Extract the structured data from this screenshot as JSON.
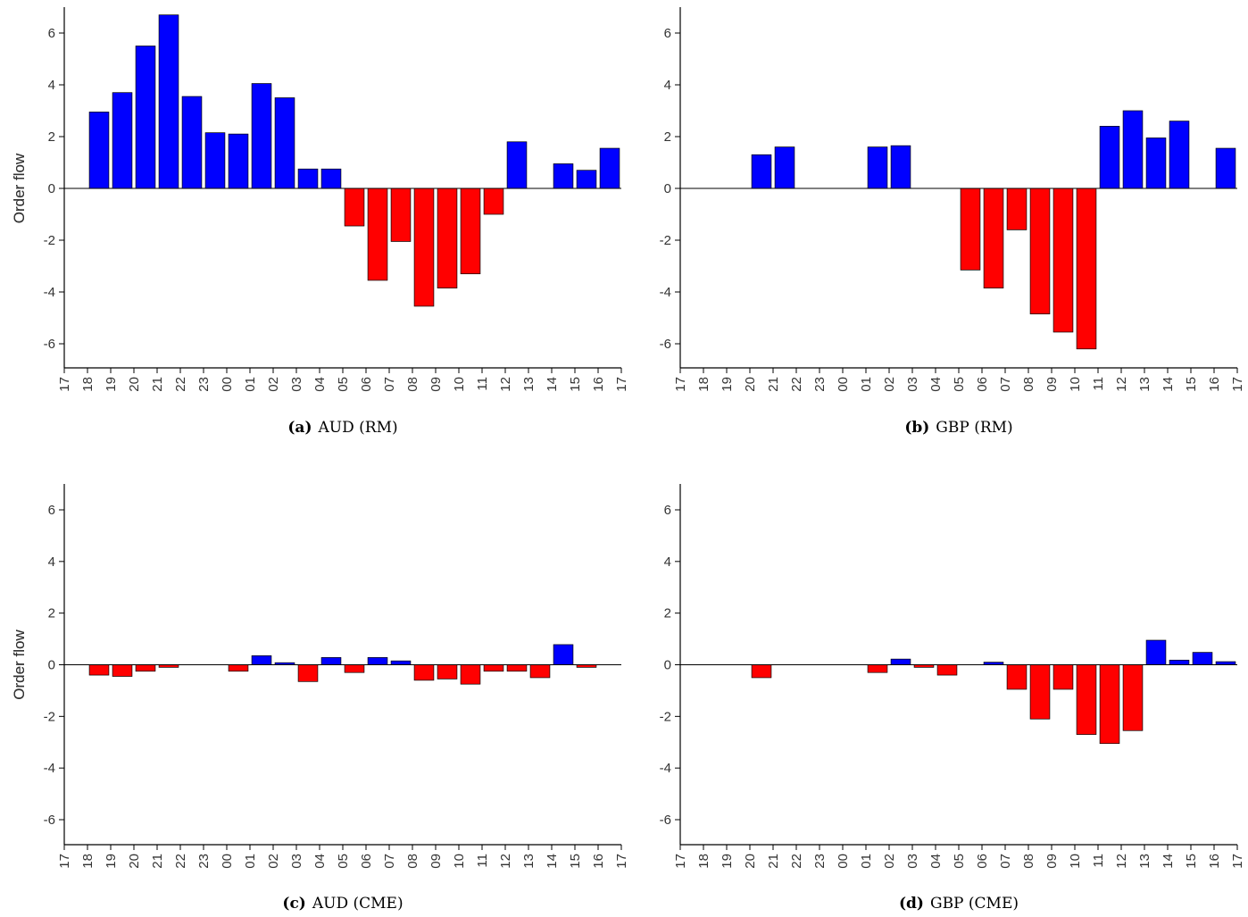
{
  "colors": {
    "positive": "#0000ff",
    "negative": "#ff0000",
    "axis": "#000000",
    "tick_text": "#333333"
  },
  "chart_data": [
    {
      "type": "bar",
      "caption_letter": "(a)",
      "caption_name": "AUD (RM)",
      "ylabel": "Order flow",
      "ylim": [
        -7,
        7
      ],
      "yticks": [
        6,
        4,
        2,
        0,
        -2,
        -4,
        -6
      ],
      "ytick_labels": [
        "6",
        "4",
        "2",
        "0",
        "-2",
        "-4",
        "-6"
      ],
      "xtick_labels": [
        "17",
        "18",
        "19",
        "20",
        "21",
        "22",
        "23",
        "00",
        "01",
        "02",
        "03",
        "04",
        "05",
        "06",
        "07",
        "08",
        "09",
        "10",
        "11",
        "12",
        "13",
        "14",
        "15",
        "16",
        "17"
      ],
      "grid": false,
      "values": [
        0,
        2.95,
        3.7,
        5.5,
        6.7,
        3.55,
        2.15,
        2.1,
        4.05,
        3.5,
        0.75,
        0.75,
        -1.45,
        -3.55,
        -2.05,
        -4.55,
        -3.85,
        -3.3,
        -1.0,
        1.8,
        0,
        0.95,
        0.7,
        1.55
      ]
    },
    {
      "type": "bar",
      "caption_letter": "(b)",
      "caption_name": "GBP (RM)",
      "ylabel": "Order flow",
      "ylim": [
        -7,
        7
      ],
      "yticks": [
        6,
        4,
        2,
        0,
        -2,
        -4,
        -6
      ],
      "ytick_labels": [
        "6",
        "4",
        "2",
        "0",
        "-2",
        "-4",
        "-6"
      ],
      "xtick_labels": [
        "17",
        "18",
        "19",
        "20",
        "21",
        "22",
        "23",
        "00",
        "01",
        "02",
        "03",
        "04",
        "05",
        "06",
        "07",
        "08",
        "09",
        "10",
        "11",
        "12",
        "13",
        "14",
        "15",
        "16",
        "17"
      ],
      "grid": false,
      "values": [
        0,
        0,
        0,
        1.3,
        1.6,
        0,
        0,
        0,
        1.6,
        1.65,
        0,
        0,
        -3.15,
        -3.85,
        -1.6,
        -4.85,
        -5.55,
        -6.2,
        2.4,
        3.0,
        1.95,
        2.6,
        0,
        1.55
      ]
    },
    {
      "type": "bar",
      "caption_letter": "(c)",
      "caption_name": "AUD (CME)",
      "ylabel": "Order flow",
      "ylim": [
        -7,
        7
      ],
      "yticks": [
        6,
        4,
        2,
        0,
        -2,
        -4,
        -6
      ],
      "ytick_labels": [
        "6",
        "4",
        "2",
        "0",
        "-2",
        "-4",
        "-6"
      ],
      "xtick_labels": [
        "17",
        "18",
        "19",
        "20",
        "21",
        "22",
        "23",
        "00",
        "01",
        "02",
        "03",
        "04",
        "05",
        "06",
        "07",
        "08",
        "09",
        "10",
        "11",
        "12",
        "13",
        "14",
        "15",
        "16",
        "17"
      ],
      "grid": false,
      "values": [
        0,
        -0.4,
        -0.45,
        -0.25,
        -0.1,
        0,
        0,
        -0.25,
        0.35,
        0.08,
        -0.65,
        0.28,
        -0.3,
        0.28,
        0.15,
        -0.6,
        -0.55,
        -0.75,
        -0.25,
        -0.25,
        -0.5,
        0.78,
        -0.1,
        0
      ]
    },
    {
      "type": "bar",
      "caption_letter": "(d)",
      "caption_name": "GBP (CME)",
      "ylabel": "Order flow",
      "ylim": [
        -7,
        7
      ],
      "yticks": [
        6,
        4,
        2,
        0,
        -2,
        -4,
        -6
      ],
      "ytick_labels": [
        "6",
        "4",
        "2",
        "0",
        "-2",
        "-4",
        "-6"
      ],
      "xtick_labels": [
        "17",
        "18",
        "19",
        "20",
        "21",
        "22",
        "23",
        "00",
        "01",
        "02",
        "03",
        "04",
        "05",
        "06",
        "07",
        "08",
        "09",
        "10",
        "11",
        "12",
        "13",
        "14",
        "15",
        "16",
        "17"
      ],
      "grid": false,
      "values": [
        0,
        0,
        0,
        -0.5,
        0,
        0,
        0,
        0,
        -0.3,
        0.22,
        -0.1,
        -0.4,
        0,
        0.1,
        -0.95,
        -2.1,
        -0.95,
        -2.7,
        -3.05,
        -2.55,
        0.95,
        0.18,
        0.48,
        0.12
      ]
    }
  ]
}
